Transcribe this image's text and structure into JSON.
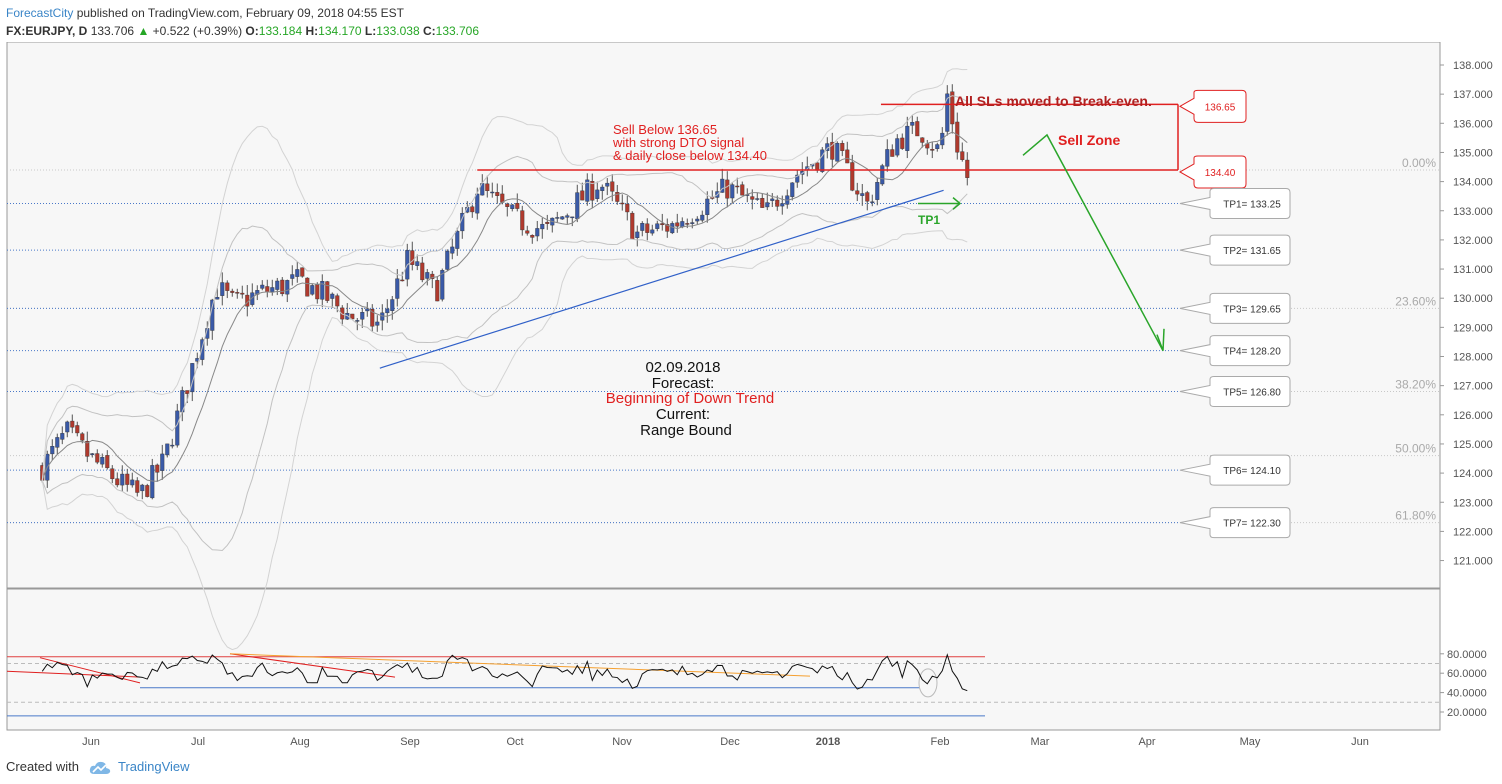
{
  "header": {
    "author": "ForecastCity",
    "published": " published on TradingView.com, February 09, 2018 04:55 EST",
    "symbol": "FX:EURJPY, D",
    "last": "133.706",
    "change": "+0.522 (+0.39%)",
    "o_label": "O:",
    "o": "133.184",
    "h_label": "H:",
    "h": "134.170",
    "l_label": "L:",
    "l": "133.038",
    "c_label": "C:",
    "c": "133.706"
  },
  "footer": {
    "created_with": "Created with",
    "brand": "TradingView"
  },
  "chart_data": {
    "type": "candlestick",
    "symbol": "FX:EURJPY",
    "interval": "D",
    "y_ticks": [
      "121.000",
      "122.000",
      "123.000",
      "124.000",
      "125.000",
      "126.000",
      "127.000",
      "128.000",
      "129.000",
      "130.000",
      "131.000",
      "132.000",
      "133.000",
      "134.000",
      "135.000",
      "136.000",
      "137.000",
      "138.000"
    ],
    "ylim": [
      120.5,
      138.3
    ],
    "x_ticks": [
      "Jun",
      "Jul",
      "Aug",
      "Sep",
      "Oct",
      "Nov",
      "Dec",
      "2018",
      "Feb",
      "Mar",
      "Apr",
      "May",
      "Jun"
    ],
    "price_path": [
      {
        "date": "2017-05-18",
        "price": 124.2
      },
      {
        "date": "2017-05-25",
        "price": 125.4
      },
      {
        "date": "2017-06-01",
        "price": 124.5
      },
      {
        "date": "2017-06-10",
        "price": 123.6
      },
      {
        "date": "2017-06-15",
        "price": 123.2
      },
      {
        "date": "2017-06-22",
        "price": 124.4
      },
      {
        "date": "2017-06-29",
        "price": 127.2
      },
      {
        "date": "2017-07-07",
        "price": 130.4
      },
      {
        "date": "2017-07-12",
        "price": 129.8
      },
      {
        "date": "2017-07-20",
        "price": 130.2
      },
      {
        "date": "2017-07-31",
        "price": 130.6
      },
      {
        "date": "2017-08-07",
        "price": 130.1
      },
      {
        "date": "2017-08-14",
        "price": 129.4
      },
      {
        "date": "2017-08-23",
        "price": 129.1
      },
      {
        "date": "2017-08-31",
        "price": 131.3
      },
      {
        "date": "2017-09-08",
        "price": 130.2
      },
      {
        "date": "2017-09-20",
        "price": 133.8
      },
      {
        "date": "2017-10-01",
        "price": 132.7
      },
      {
        "date": "2017-10-10",
        "price": 132.3
      },
      {
        "date": "2017-10-25",
        "price": 134.0
      },
      {
        "date": "2017-11-05",
        "price": 132.2
      },
      {
        "date": "2017-11-15",
        "price": 132.5
      },
      {
        "date": "2017-11-25",
        "price": 133.3
      },
      {
        "date": "2017-12-01",
        "price": 133.8
      },
      {
        "date": "2017-12-12",
        "price": 132.9
      },
      {
        "date": "2017-12-20",
        "price": 134.2
      },
      {
        "date": "2017-12-31",
        "price": 135.2
      },
      {
        "date": "2018-01-10",
        "price": 133.2
      },
      {
        "date": "2018-01-18",
        "price": 135.4
      },
      {
        "date": "2018-01-25",
        "price": 135.8
      },
      {
        "date": "2018-01-31",
        "price": 135.0
      },
      {
        "date": "2018-02-02",
        "price": 137.0
      },
      {
        "date": "2018-02-05",
        "price": 135.2
      },
      {
        "date": "2018-02-09",
        "price": 133.7
      }
    ],
    "horizontal_levels": [
      {
        "label": "136.65",
        "value": 136.65,
        "color": "#e02020"
      },
      {
        "label": "134.40",
        "value": 134.4,
        "color": "#e02020"
      }
    ],
    "tp_levels": [
      {
        "label": "TP1= 133.25",
        "value": 133.25
      },
      {
        "label": "TP2= 131.65",
        "value": 131.65
      },
      {
        "label": "TP3= 129.65",
        "value": 129.65
      },
      {
        "label": "TP4= 128.20",
        "value": 128.2
      },
      {
        "label": "TP5= 126.80",
        "value": 126.8
      },
      {
        "label": "TP6= 124.10",
        "value": 124.1
      },
      {
        "label": "TP7= 122.30",
        "value": 122.3
      }
    ],
    "fib_levels": [
      {
        "label": "0.00%",
        "value": 134.4
      },
      {
        "label": "23.60%",
        "value": 129.65
      },
      {
        "label": "38.20%",
        "value": 126.8
      },
      {
        "label": "50.00%",
        "value": 124.6
      },
      {
        "label": "61.80%",
        "value": 122.3
      }
    ],
    "trendline": {
      "from": {
        "date": "2017-08-23",
        "price": 127.6
      },
      "to": {
        "date": "2018-02-01",
        "price": 133.7
      },
      "color": "#3060c8"
    },
    "annotations": {
      "sell_below": [
        "Sell Below 136.65",
        "with strong DTO signal",
        "& daily close below 134.40"
      ],
      "sls_note": "All SLs moved to Break-even.",
      "sell_zone": "Sell Zone",
      "tp1_marker": "TP1",
      "forecast_date": "02.09.2018",
      "forecast_label": "Forecast:",
      "forecast_value": "Beginning of Down Trend",
      "current_label": "Current:",
      "current_value": "Range Bound"
    },
    "oscillator": {
      "y_ticks": [
        "20.0000",
        "40.0000",
        "60.0000",
        "80.0000"
      ],
      "ylim": [
        12,
        88
      ],
      "upper_line": 77,
      "lower_line": 16,
      "dashed_levels": [
        70,
        30
      ]
    }
  }
}
